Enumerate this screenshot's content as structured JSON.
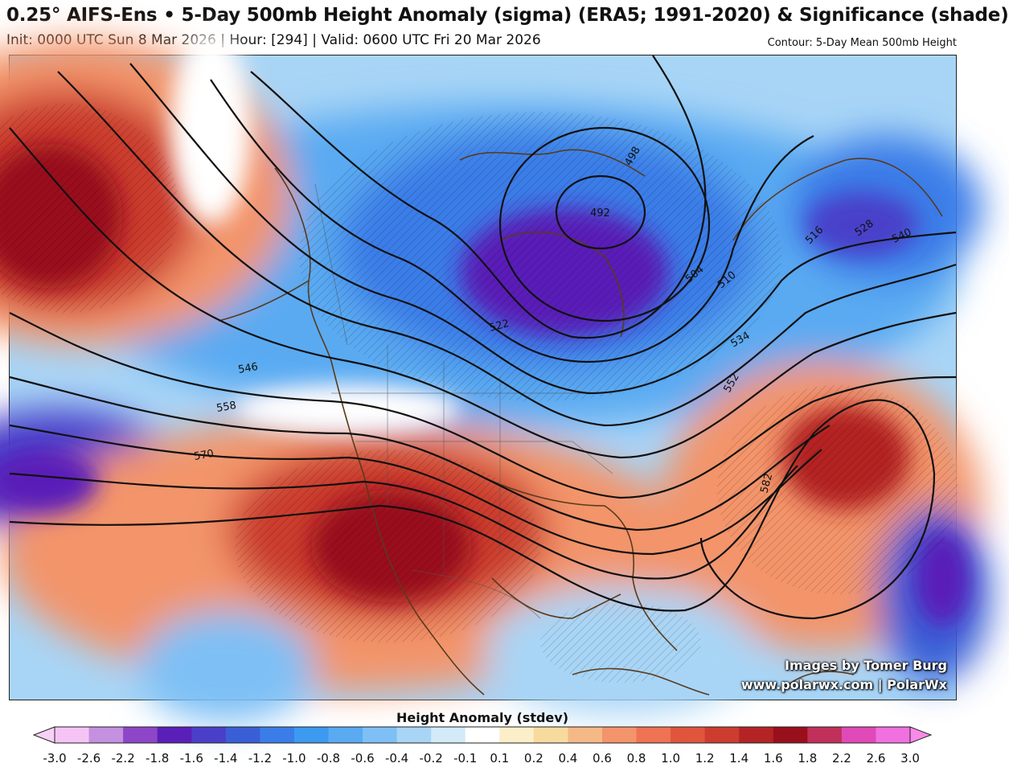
{
  "header": {
    "title": "0.25° AIFS-Ens • 5-Day 500mb Height Anomaly (sigma) (ERA5; 1991-2020) & Significance (shade)",
    "subtitle": "Init: 0000 UTC Sun 8 Mar 2026 | Hour: [294] | Valid: 0600 UTC Fri 20 Mar 2026",
    "contour_note": "Contour: 5-Day Mean 500mb Height"
  },
  "map": {
    "contour_labels": [
      "498",
      "492",
      "504",
      "510",
      "516",
      "528",
      "540",
      "522",
      "534",
      "546",
      "552",
      "558",
      "570",
      "582"
    ],
    "colors": {
      "strong_negative": "#6a2ec9",
      "negative": "#3a86e8",
      "weak_negative": "#8cc4f2",
      "neutral": "#ffffff",
      "weak_positive": "#f6d9a5",
      "positive": "#e8623a",
      "strong_positive": "#9b0f1e",
      "coastline": "#5a3a1c"
    }
  },
  "credits": {
    "line1": "Images by Tomer Burg",
    "line2": "www.polarwx.com | PolarWx"
  },
  "colorbar": {
    "title": "Height Anomaly (stdev)",
    "ticks": [
      "-3.0",
      "-2.6",
      "-2.2",
      "-1.8",
      "-1.6",
      "-1.4",
      "-1.2",
      "-1.0",
      "-0.8",
      "-0.6",
      "-0.4",
      "-0.2",
      "-0.1",
      "0.1",
      "0.2",
      "0.4",
      "0.6",
      "0.8",
      "1.0",
      "1.2",
      "1.4",
      "1.6",
      "1.8",
      "2.2",
      "2.6",
      "3.0"
    ],
    "colors": [
      "#f6c4f4",
      "#c490e0",
      "#8e46c8",
      "#5a1fb8",
      "#4a3fc9",
      "#3a5ed6",
      "#3a7de8",
      "#3c9af0",
      "#5aaaf2",
      "#7ec0f5",
      "#a8d5f6",
      "#d3eaf9",
      "#ffffff",
      "#fbeec8",
      "#f7da9d",
      "#f5b987",
      "#f3946a",
      "#ee7353",
      "#e0553c",
      "#cc3c2f",
      "#b42424",
      "#9a0f1c",
      "#c0305a",
      "#e04ab8",
      "#f070e0"
    ],
    "min_color": "#f8d2f6",
    "max_color": "#f88ae8"
  }
}
